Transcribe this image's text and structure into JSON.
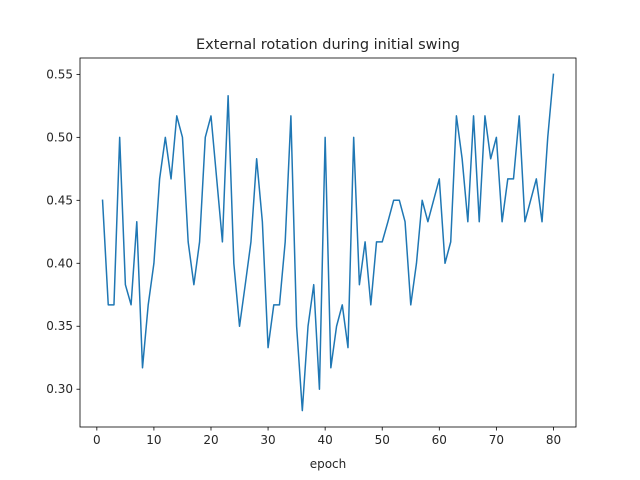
{
  "chart_data": {
    "type": "line",
    "title": "External rotation during initial swing",
    "xlabel": "epoch",
    "ylabel": "",
    "xlim": [
      -2.95,
      83.95
    ],
    "ylim": [
      0.27,
      0.563
    ],
    "xticks": [
      0,
      10,
      20,
      30,
      40,
      50,
      60,
      70,
      80
    ],
    "yticks": [
      0.3,
      0.35,
      0.4,
      0.45,
      0.5,
      0.55
    ],
    "ytick_labels": [
      "0.30",
      "0.35",
      "0.40",
      "0.45",
      "0.50",
      "0.55"
    ],
    "grid": false,
    "line_color": "#1f77b4",
    "series": [
      {
        "x": [
          1,
          2,
          3,
          4,
          5,
          6,
          7,
          8,
          9,
          10,
          11,
          12,
          13,
          14,
          15,
          16,
          17,
          18,
          19,
          20,
          21,
          22,
          23,
          24,
          25,
          26,
          27,
          28,
          29,
          30,
          31,
          32,
          33,
          34,
          35,
          36,
          37,
          38,
          39,
          40,
          41,
          42,
          43,
          44,
          45,
          46,
          47,
          48,
          49,
          50,
          51,
          52,
          53,
          54,
          55,
          56,
          57,
          58,
          59,
          60,
          61,
          62,
          63,
          64,
          65,
          66,
          67,
          68,
          69,
          70,
          71,
          72,
          73,
          74,
          75,
          76,
          77,
          78,
          79,
          80
        ],
        "values": [
          0.45,
          0.367,
          0.367,
          0.5,
          0.383,
          0.367,
          0.433,
          0.317,
          0.367,
          0.4,
          0.467,
          0.5,
          0.467,
          0.517,
          0.5,
          0.417,
          0.383,
          0.417,
          0.5,
          0.517,
          0.467,
          0.417,
          0.533,
          0.4,
          0.35,
          0.383,
          0.417,
          0.483,
          0.433,
          0.333,
          0.367,
          0.367,
          0.417,
          0.517,
          0.35,
          0.283,
          0.35,
          0.383,
          0.3,
          0.5,
          0.317,
          0.35,
          0.367,
          0.333,
          0.5,
          0.383,
          0.417,
          0.367,
          0.417,
          0.417,
          0.433,
          0.45,
          0.45,
          0.433,
          0.367,
          0.4,
          0.45,
          0.433,
          0.45,
          0.467,
          0.4,
          0.417,
          0.517,
          0.483,
          0.433,
          0.517,
          0.433,
          0.517,
          0.483,
          0.5,
          0.433,
          0.467,
          0.467,
          0.517,
          0.433,
          0.45,
          0.467,
          0.433,
          0.5,
          0.55
        ]
      }
    ]
  }
}
